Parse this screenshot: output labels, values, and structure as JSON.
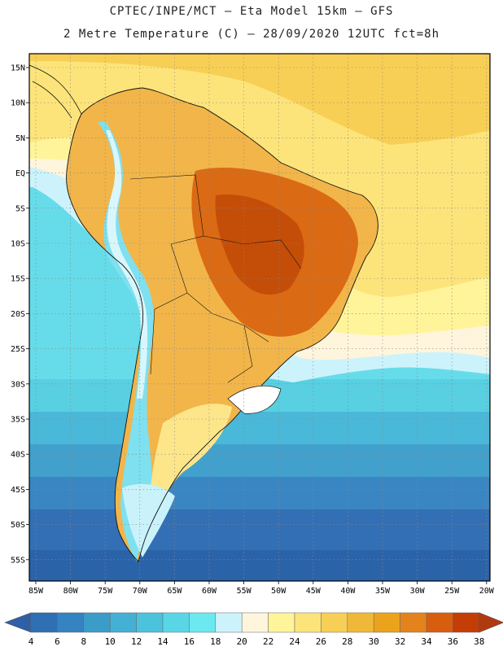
{
  "header": {
    "line1": "CPTEC/INPE/MCT –  Eta Model 15km – GFS",
    "line2": "2 Metre Temperature (C) – 28/09/2020 12UTC fct=8h"
  },
  "map": {
    "lat_labels": [
      "15N",
      "10N",
      "5N",
      "EQ",
      "5S",
      "10S",
      "15S",
      "20S",
      "25S",
      "30S",
      "35S",
      "40S",
      "45S",
      "50S",
      "55S"
    ],
    "lon_labels": [
      "85W",
      "80W",
      "75W",
      "70W",
      "65W",
      "60W",
      "55W",
      "50W",
      "45W",
      "40W",
      "35W",
      "30W",
      "25W",
      "20W"
    ],
    "lat_range": [
      15,
      -58
    ],
    "lon_range": [
      -85.5,
      -20
    ]
  },
  "colorbar": {
    "labels": [
      "4",
      "6",
      "8",
      "10",
      "12",
      "14",
      "16",
      "18",
      "20",
      "22",
      "24",
      "26",
      "28",
      "30",
      "32",
      "34",
      "36",
      "38"
    ],
    "colors": [
      "#2f6fb3",
      "#3583c0",
      "#3c9cc8",
      "#44b0d4",
      "#4cc3dc",
      "#58d6e6",
      "#6ce8f0",
      "#ccf3fb",
      "#fff5dc",
      "#fff49a",
      "#fde47a",
      "#f8cf55",
      "#f0b838",
      "#eba21c",
      "#e4831c",
      "#d85e0e",
      "#c43d06",
      "#a42a04"
    ],
    "low_color": "#2f5fa8",
    "high_color": "#b03a10"
  },
  "legend_text": {
    "ocean": "#3a7fc0",
    "land": "#f0b440"
  }
}
